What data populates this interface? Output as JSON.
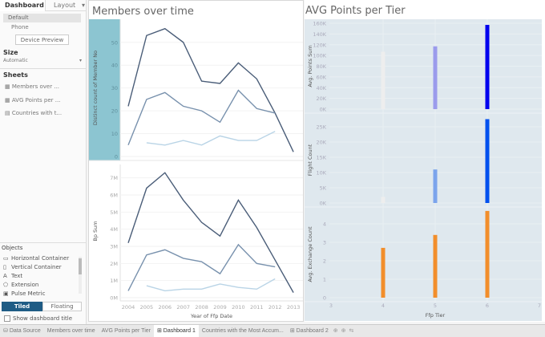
{
  "sidebar": {
    "tabs": [
      "Dashboard",
      "Layout"
    ],
    "devices": [
      "Default",
      "Phone"
    ],
    "device_preview": "Device Preview",
    "size_title": "Size",
    "size_value": "Automatic",
    "sheets_title": "Sheets",
    "sheets": [
      "Members over ...",
      "AVG Points per ...",
      "Countries with t..."
    ],
    "objects_title": "Objects",
    "objects": [
      {
        "icon": "horizontal-container-icon",
        "label": "Horizontal Container"
      },
      {
        "icon": "vertical-container-icon",
        "label": "Vertical Container"
      },
      {
        "icon": "text-icon",
        "label": "Text"
      },
      {
        "icon": "extension-icon",
        "label": "Extension"
      },
      {
        "icon": "pulse-metric-icon",
        "label": "Pulse Metric"
      }
    ],
    "tiled": "Tiled",
    "floating": "Floating",
    "show_title": "Show dashboard title",
    "accent": "#1f5c85"
  },
  "bottom_tabs": [
    "Data Source",
    "Members over time",
    "AVG Points per Tier",
    "Dashboard 1",
    "Countries with the Most Accum...",
    "Dashboard 2"
  ],
  "active_tab": "Dashboard 1",
  "chart_data": [
    {
      "type": "line",
      "title": "Members over time",
      "ylabel": "Distinct count of Member No",
      "ylim": [
        0,
        58
      ],
      "yticks": [
        0,
        10,
        20,
        30,
        40,
        50
      ],
      "x": [
        2004,
        2005,
        2006,
        2007,
        2008,
        2009,
        2010,
        2011,
        2012,
        2013
      ],
      "series": [
        {
          "color": "#4a5d78",
          "values": [
            22,
            53,
            56,
            50,
            33,
            32,
            41,
            34,
            19,
            2
          ]
        },
        {
          "color": "#7891ad",
          "values": [
            5,
            25,
            28,
            22,
            20,
            15,
            29,
            21,
            19,
            null
          ]
        },
        {
          "color": "#b9d4e6",
          "values": [
            null,
            6,
            5,
            7,
            5,
            9,
            7,
            7,
            11,
            null
          ]
        }
      ]
    },
    {
      "type": "line",
      "ylabel": "Bp Sum",
      "xlabel": "Year of Ffp Date",
      "ylim": [
        0,
        7.5
      ],
      "yticks": [
        "0M",
        "1M",
        "2M",
        "3M",
        "4M",
        "5M",
        "6M",
        "7M"
      ],
      "x": [
        2004,
        2005,
        2006,
        2007,
        2008,
        2009,
        2010,
        2011,
        2012,
        2013
      ],
      "series": [
        {
          "color": "#4a5d78",
          "values": [
            3.2,
            6.4,
            7.3,
            5.7,
            4.4,
            3.6,
            5.7,
            4.1,
            2.2,
            0.3
          ]
        },
        {
          "color": "#7891ad",
          "values": [
            0.4,
            2.5,
            2.8,
            2.3,
            2.1,
            1.4,
            3.1,
            2.0,
            1.8,
            null
          ]
        },
        {
          "color": "#b9d4e6",
          "values": [
            null,
            0.7,
            0.4,
            0.5,
            0.5,
            0.8,
            0.6,
            0.5,
            1.1,
            null
          ]
        }
      ]
    },
    {
      "type": "bar",
      "title": "AVG Points per Tier",
      "ylabel": "Avg. Points Sum",
      "ylim": [
        0,
        160000
      ],
      "yticks": [
        "0K",
        "20K",
        "40K",
        "60K",
        "80K",
        "100K",
        "120K",
        "140K",
        "160K"
      ],
      "x": [
        4,
        5,
        6
      ],
      "values": [
        107000,
        117000,
        157000
      ],
      "colors": [
        "#eeeeee",
        "#9b9bec",
        "#0000ee"
      ]
    },
    {
      "type": "bar",
      "ylabel": "Flight Count",
      "ylim": [
        0,
        27500
      ],
      "yticks": [
        "0K",
        "5K",
        "10K",
        "15K",
        "20K",
        "25K"
      ],
      "x": [
        4,
        5,
        6
      ],
      "values": [
        2000,
        11000,
        27500
      ],
      "colors": [
        "#eeeeee",
        "#7ba4ec",
        "#0050ee"
      ]
    },
    {
      "type": "bar",
      "ylabel": "Avg. Exchange Count",
      "xlabel": "Ffp Tier",
      "ylim": [
        0,
        4.7
      ],
      "yticks": [
        "0",
        "1",
        "2",
        "3",
        "4"
      ],
      "x": [
        4,
        5,
        6
      ],
      "values": [
        2.7,
        3.4,
        4.7
      ],
      "colors": [
        "#f28e2b",
        "#f28e2b",
        "#f28e2b"
      ],
      "xticks": [
        3,
        4,
        5,
        6,
        7
      ]
    }
  ]
}
